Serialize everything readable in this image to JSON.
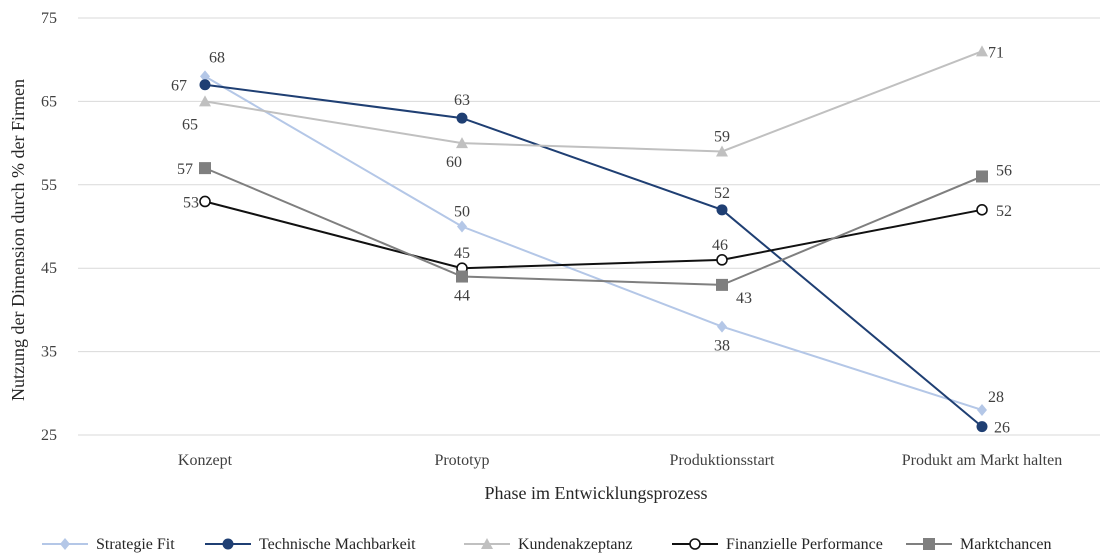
{
  "chart_data": {
    "type": "line",
    "categories": [
      "Konzept",
      "Prototyp",
      "Produktionsstart",
      "Produkt am Markt halten"
    ],
    "xlabel": "Phase im Entwicklungsprozess",
    "ylabel": "Nutzung der Dimension durch % der Firmen",
    "ylim": [
      25,
      75
    ],
    "yticks": [
      25,
      35,
      45,
      55,
      65,
      75
    ],
    "grid": true,
    "legend_position": "bottom",
    "series": [
      {
        "name": "Strategie Fit",
        "values": [
          68,
          50,
          38,
          28
        ],
        "color": "#b4c7e7",
        "marker": "diamond"
      },
      {
        "name": "Technische Machbarkeit",
        "values": [
          67,
          63,
          52,
          26
        ],
        "color": "#1f3f73",
        "marker": "circle-filled"
      },
      {
        "name": "Kundenakzeptanz",
        "values": [
          65,
          60,
          59,
          71
        ],
        "color": "#c0c0c0",
        "marker": "triangle"
      },
      {
        "name": "Finanzielle Performance",
        "values": [
          53,
          45,
          46,
          52
        ],
        "color": "#111111",
        "marker": "circle-open"
      },
      {
        "name": "Marktchancen",
        "values": [
          57,
          44,
          43,
          56
        ],
        "color": "#7f7f7f",
        "marker": "square"
      }
    ]
  }
}
